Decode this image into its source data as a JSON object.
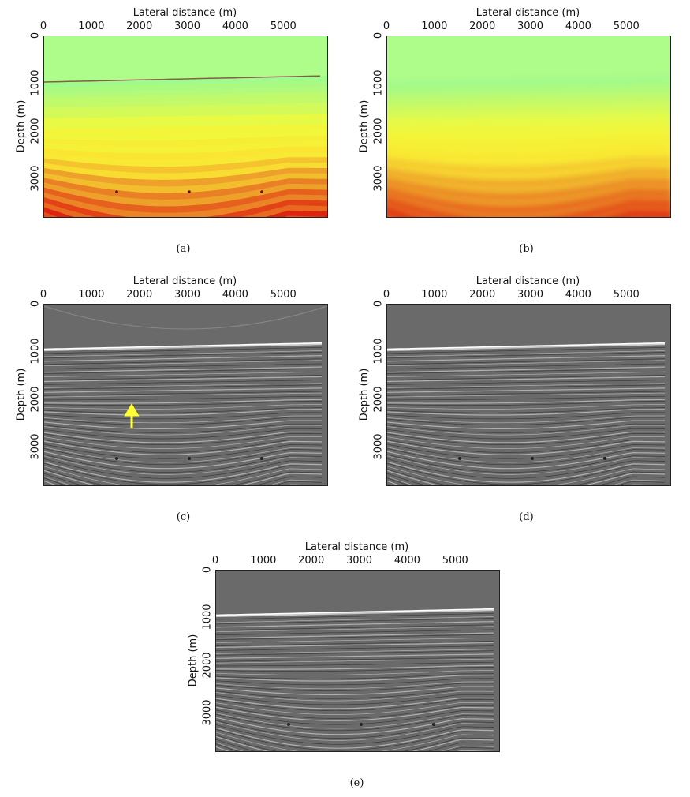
{
  "axes": {
    "xlabel": "Lateral distance (m)",
    "ylabel": "Depth (m)",
    "xticks": [
      "0",
      "1000",
      "2000",
      "3000",
      "4000",
      "5000"
    ],
    "yticks": [
      "0",
      "1000",
      "2000",
      "3000"
    ],
    "xrange_m": [
      0,
      5900
    ],
    "yrange_m": [
      0,
      3800
    ]
  },
  "panels": [
    {
      "id": "a",
      "caption": "(a)",
      "kind": "velocity-sharp"
    },
    {
      "id": "b",
      "caption": "(b)",
      "kind": "velocity-smooth"
    },
    {
      "id": "c",
      "caption": "(c)",
      "kind": "seismic",
      "arrow": true
    },
    {
      "id": "d",
      "caption": "(d)",
      "kind": "seismic"
    },
    {
      "id": "e",
      "caption": "(e)",
      "kind": "seismic"
    }
  ],
  "colors": {
    "water": "#aefc8a",
    "seismic_bg": "#6a6a6a",
    "arrow": "#ffff33"
  }
}
